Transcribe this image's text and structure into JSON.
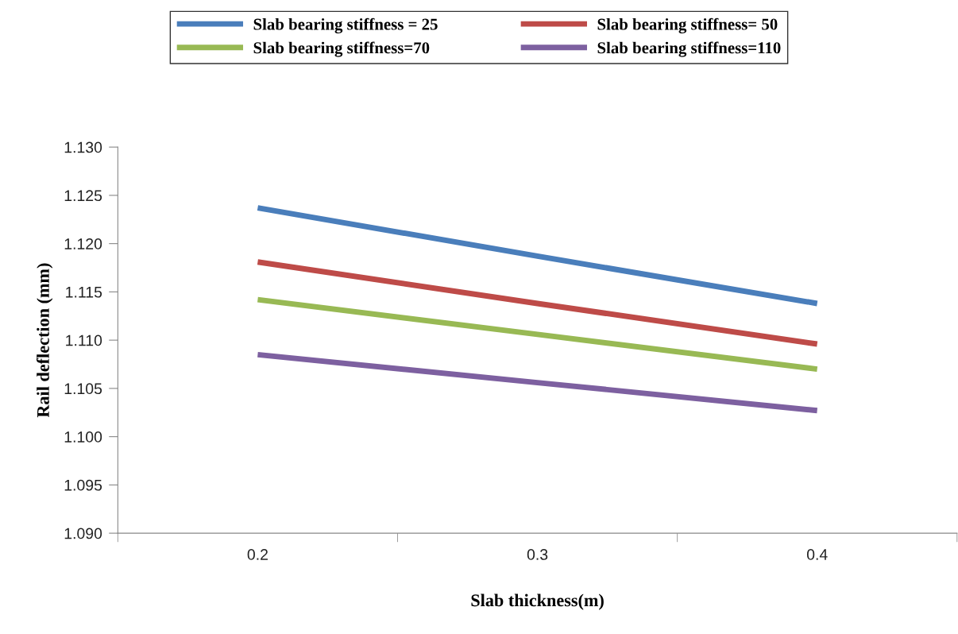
{
  "chart_data": {
    "type": "line",
    "xlabel": "Slab thickness(m)",
    "ylabel": "Rail deflection (mm)",
    "categories": [
      "0.2",
      "0.3",
      "0.4"
    ],
    "series": [
      {
        "name": "Slab bearing stiffness = 25",
        "color": "#4a7ebb",
        "values": [
          1.1237,
          1.1187,
          1.1138
        ]
      },
      {
        "name": "Slab bearing stiffness= 50",
        "color": "#be4b48",
        "values": [
          1.1181,
          1.1138,
          1.1096
        ]
      },
      {
        "name": "Slab bearing stiffness=70",
        "color": "#98b954",
        "values": [
          1.1142,
          1.1106,
          1.107
        ]
      },
      {
        "name": "Slab bearing stiffness=110",
        "color": "#7d60a0",
        "values": [
          1.1085,
          1.1056,
          1.1027
        ]
      }
    ],
    "ylim": [
      1.09,
      1.13
    ],
    "yticks": [
      {
        "value": 1.09,
        "label": "1.090"
      },
      {
        "value": 1.095,
        "label": "1.095"
      },
      {
        "value": 1.1,
        "label": "1.100"
      },
      {
        "value": 1.105,
        "label": "1.105"
      },
      {
        "value": 1.11,
        "label": "1.110"
      },
      {
        "value": 1.115,
        "label": "1.115"
      },
      {
        "value": 1.12,
        "label": "1.120"
      },
      {
        "value": 1.125,
        "label": "1.125"
      },
      {
        "value": 1.13,
        "label": "1.130"
      }
    ],
    "grid": false,
    "legend": "top",
    "marker": "none",
    "line_style": "solid"
  }
}
